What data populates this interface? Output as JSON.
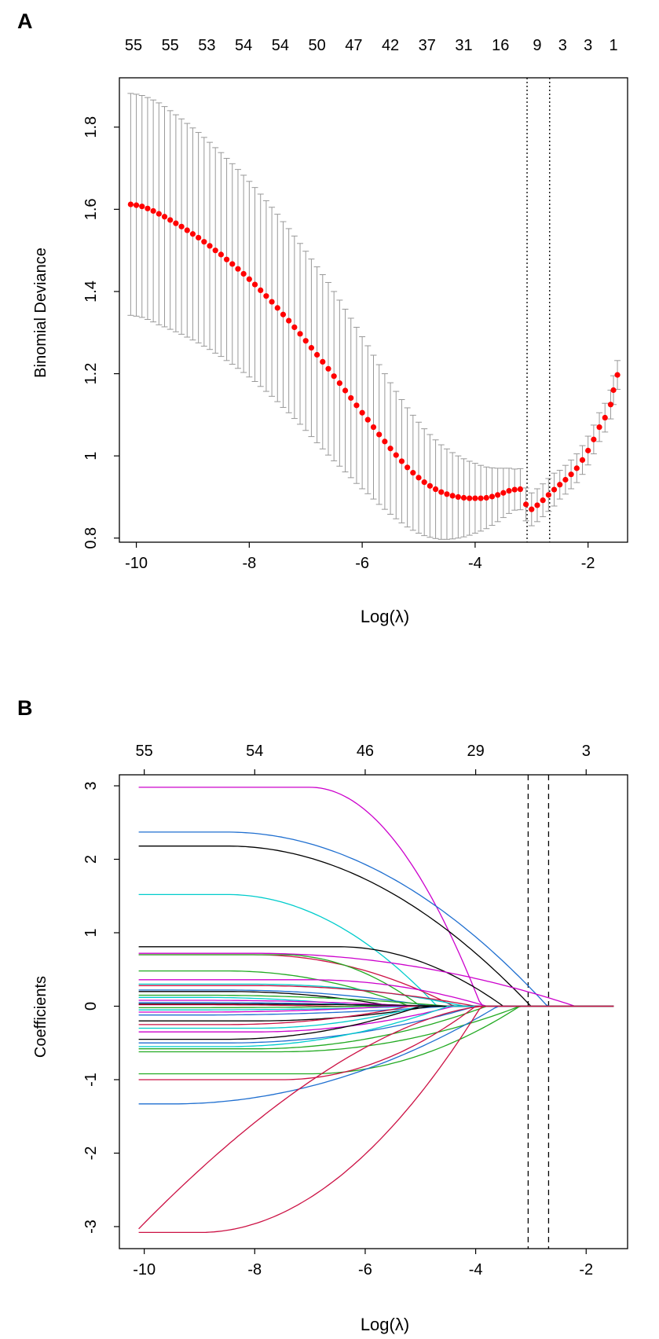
{
  "chart_data": [
    {
      "type": "scatter",
      "panel_label": "A",
      "xlabel": "Log(λ)",
      "ylabel": "Binomial Deviance",
      "xlim": [
        -10.3,
        -1.3
      ],
      "ylim": [
        0.79,
        1.92
      ],
      "xticks": [
        -10,
        -8,
        -6,
        -4,
        -2
      ],
      "yticks": [
        0.8,
        1.0,
        1.2,
        1.4,
        1.6,
        1.8
      ],
      "top_axis_counts": [
        "55",
        "55",
        "53",
        "54",
        "54",
        "50",
        "47",
        "42",
        "37",
        "31",
        "16",
        "9",
        "3",
        "3",
        "1"
      ],
      "top_axis_log_lambda": [
        -10.05,
        -9.4,
        -8.75,
        -8.1,
        -7.45,
        -6.8,
        -6.15,
        -5.5,
        -4.85,
        -4.2,
        -3.55,
        -2.9,
        -2.45,
        -2.0,
        -1.55
      ],
      "vlines": [
        -3.08,
        -2.68
      ],
      "vline_style": "dotted",
      "points": [
        {
          "x": -10.1,
          "y": 1.612,
          "err": 0.27
        },
        {
          "x": -10.0,
          "y": 1.61,
          "err": 0.27
        },
        {
          "x": -9.9,
          "y": 1.607,
          "err": 0.27
        },
        {
          "x": -9.8,
          "y": 1.602,
          "err": 0.27
        },
        {
          "x": -9.7,
          "y": 1.596,
          "err": 0.27
        },
        {
          "x": -9.6,
          "y": 1.589,
          "err": 0.27
        },
        {
          "x": -9.5,
          "y": 1.582,
          "err": 0.268
        },
        {
          "x": -9.4,
          "y": 1.574,
          "err": 0.266
        },
        {
          "x": -9.3,
          "y": 1.566,
          "err": 0.264
        },
        {
          "x": -9.2,
          "y": 1.558,
          "err": 0.262
        },
        {
          "x": -9.1,
          "y": 1.549,
          "err": 0.26
        },
        {
          "x": -9.0,
          "y": 1.54,
          "err": 0.258
        },
        {
          "x": -8.9,
          "y": 1.531,
          "err": 0.256
        },
        {
          "x": -8.8,
          "y": 1.521,
          "err": 0.254
        },
        {
          "x": -8.7,
          "y": 1.511,
          "err": 0.252
        },
        {
          "x": -8.6,
          "y": 1.5,
          "err": 0.25
        },
        {
          "x": -8.5,
          "y": 1.49,
          "err": 0.248
        },
        {
          "x": -8.4,
          "y": 1.478,
          "err": 0.246
        },
        {
          "x": -8.3,
          "y": 1.467,
          "err": 0.244
        },
        {
          "x": -8.2,
          "y": 1.455,
          "err": 0.242
        },
        {
          "x": -8.1,
          "y": 1.443,
          "err": 0.24
        },
        {
          "x": -8.0,
          "y": 1.43,
          "err": 0.238
        },
        {
          "x": -7.9,
          "y": 1.417,
          "err": 0.236
        },
        {
          "x": -7.8,
          "y": 1.403,
          "err": 0.234
        },
        {
          "x": -7.7,
          "y": 1.389,
          "err": 0.232
        },
        {
          "x": -7.6,
          "y": 1.375,
          "err": 0.23
        },
        {
          "x": -7.5,
          "y": 1.36,
          "err": 0.228
        },
        {
          "x": -7.4,
          "y": 1.344,
          "err": 0.226
        },
        {
          "x": -7.3,
          "y": 1.329,
          "err": 0.224
        },
        {
          "x": -7.2,
          "y": 1.313,
          "err": 0.222
        },
        {
          "x": -7.1,
          "y": 1.297,
          "err": 0.22
        },
        {
          "x": -7.0,
          "y": 1.28,
          "err": 0.218
        },
        {
          "x": -6.9,
          "y": 1.263,
          "err": 0.216
        },
        {
          "x": -6.8,
          "y": 1.246,
          "err": 0.214
        },
        {
          "x": -6.7,
          "y": 1.229,
          "err": 0.212
        },
        {
          "x": -6.6,
          "y": 1.212,
          "err": 0.21
        },
        {
          "x": -6.5,
          "y": 1.194,
          "err": 0.206
        },
        {
          "x": -6.4,
          "y": 1.177,
          "err": 0.202
        },
        {
          "x": -6.3,
          "y": 1.159,
          "err": 0.198
        },
        {
          "x": -6.2,
          "y": 1.141,
          "err": 0.194
        },
        {
          "x": -6.1,
          "y": 1.123,
          "err": 0.19
        },
        {
          "x": -6.0,
          "y": 1.105,
          "err": 0.185
        },
        {
          "x": -5.9,
          "y": 1.088,
          "err": 0.18
        },
        {
          "x": -5.8,
          "y": 1.07,
          "err": 0.175
        },
        {
          "x": -5.7,
          "y": 1.052,
          "err": 0.17
        },
        {
          "x": -5.6,
          "y": 1.035,
          "err": 0.165
        },
        {
          "x": -5.5,
          "y": 1.018,
          "err": 0.16
        },
        {
          "x": -5.4,
          "y": 1.002,
          "err": 0.155
        },
        {
          "x": -5.3,
          "y": 0.987,
          "err": 0.15
        },
        {
          "x": -5.2,
          "y": 0.972,
          "err": 0.145
        },
        {
          "x": -5.1,
          "y": 0.959,
          "err": 0.14
        },
        {
          "x": -5.0,
          "y": 0.947,
          "err": 0.135
        },
        {
          "x": -4.9,
          "y": 0.936,
          "err": 0.13
        },
        {
          "x": -4.8,
          "y": 0.927,
          "err": 0.125
        },
        {
          "x": -4.7,
          "y": 0.919,
          "err": 0.12
        },
        {
          "x": -4.6,
          "y": 0.912,
          "err": 0.115
        },
        {
          "x": -4.5,
          "y": 0.907,
          "err": 0.11
        },
        {
          "x": -4.4,
          "y": 0.903,
          "err": 0.105
        },
        {
          "x": -4.3,
          "y": 0.9,
          "err": 0.1
        },
        {
          "x": -4.2,
          "y": 0.898,
          "err": 0.095
        },
        {
          "x": -4.1,
          "y": 0.897,
          "err": 0.09
        },
        {
          "x": -4.0,
          "y": 0.897,
          "err": 0.085
        },
        {
          "x": -3.9,
          "y": 0.897,
          "err": 0.08
        },
        {
          "x": -3.8,
          "y": 0.898,
          "err": 0.075
        },
        {
          "x": -3.7,
          "y": 0.901,
          "err": 0.07
        },
        {
          "x": -3.6,
          "y": 0.905,
          "err": 0.065
        },
        {
          "x": -3.5,
          "y": 0.91,
          "err": 0.06
        },
        {
          "x": -3.4,
          "y": 0.915,
          "err": 0.055
        },
        {
          "x": -3.3,
          "y": 0.918,
          "err": 0.05
        },
        {
          "x": -3.2,
          "y": 0.919,
          "err": 0.05
        },
        {
          "x": -3.1,
          "y": 0.882,
          "err": 0.04
        },
        {
          "x": -3.0,
          "y": 0.87,
          "err": 0.04
        },
        {
          "x": -2.9,
          "y": 0.88,
          "err": 0.04
        },
        {
          "x": -2.8,
          "y": 0.892,
          "err": 0.04
        },
        {
          "x": -2.7,
          "y": 0.905,
          "err": 0.04
        },
        {
          "x": -2.6,
          "y": 0.918,
          "err": 0.04
        },
        {
          "x": -2.5,
          "y": 0.93,
          "err": 0.035
        },
        {
          "x": -2.4,
          "y": 0.942,
          "err": 0.035
        },
        {
          "x": -2.3,
          "y": 0.955,
          "err": 0.035
        },
        {
          "x": -2.2,
          "y": 0.97,
          "err": 0.035
        },
        {
          "x": -2.1,
          "y": 0.99,
          "err": 0.035
        },
        {
          "x": -2.0,
          "y": 1.013,
          "err": 0.035
        },
        {
          "x": -1.9,
          "y": 1.04,
          "err": 0.035
        },
        {
          "x": -1.8,
          "y": 1.07,
          "err": 0.035
        },
        {
          "x": -1.7,
          "y": 1.093,
          "err": 0.035
        },
        {
          "x": -1.6,
          "y": 1.125,
          "err": 0.035
        },
        {
          "x": -1.55,
          "y": 1.16,
          "err": 0.035
        },
        {
          "x": -1.48,
          "y": 1.197,
          "err": 0.035
        }
      ],
      "point_color": "#ff0000",
      "errorbar_color": "#999999"
    },
    {
      "type": "line",
      "panel_label": "B",
      "xlabel": "Log(λ)",
      "ylabel": "Coefficients",
      "xlim": [
        -10.45,
        -1.25
      ],
      "ylim": [
        -3.3,
        3.15
      ],
      "xticks": [
        -10,
        -8,
        -6,
        -4,
        -2
      ],
      "yticks": [
        -3,
        -2,
        -1,
        0,
        1,
        2,
        3
      ],
      "top_axis_counts": [
        "55",
        "54",
        "46",
        "29",
        "3"
      ],
      "top_axis_log_lambda": [
        -10,
        -8,
        -6,
        -4,
        -2
      ],
      "vlines": [
        -3.05,
        -2.68
      ],
      "vline_style": "dashed",
      "series": [
        {
          "name": "magenta-top",
          "color": "#cc00cc",
          "start": 2.98,
          "plateau": -7.0,
          "zero": -3.9,
          "shape": "hinge"
        },
        {
          "name": "blue-top",
          "color": "#1f6fd0",
          "start": 2.37,
          "plateau": -8.5,
          "zero": -2.7,
          "shape": "hinge"
        },
        {
          "name": "black-top",
          "color": "#000000",
          "start": 2.18,
          "plateau": -8.5,
          "zero": -3.0,
          "shape": "hinge"
        },
        {
          "name": "cyan-top",
          "color": "#00cccc",
          "start": 1.52,
          "plateau": -8.5,
          "zero": -4.7,
          "shape": "hinge"
        },
        {
          "name": "black-0.81",
          "color": "#000000",
          "start": 0.81,
          "plateau": -6.5,
          "zero": -3.5,
          "shape": "hinge"
        },
        {
          "name": "magenta-0.72",
          "color": "#cc00cc",
          "start": 0.72,
          "plateau": -8.0,
          "zero": -2.2,
          "shape": "hinge"
        },
        {
          "name": "crimson-0.70",
          "color": "#cc1144",
          "start": 0.7,
          "plateau": -8.0,
          "zero": -4.4,
          "shape": "hinge"
        },
        {
          "name": "green-0.70",
          "color": "#22aa22",
          "start": 0.7,
          "plateau": -7.5,
          "zero": -5.0,
          "shape": "hinge"
        },
        {
          "name": "green-0.48",
          "color": "#22aa22",
          "start": 0.48,
          "plateau": -8.5,
          "zero": -5.2,
          "shape": "hinge"
        },
        {
          "name": "magenta-0.36",
          "color": "#cc00cc",
          "start": 0.36,
          "plateau": -7.0,
          "zero": -3.8,
          "shape": "hinge"
        },
        {
          "name": "cyan-0.30",
          "color": "#00cccc",
          "start": 0.3,
          "plateau": -8.0,
          "zero": -4.2,
          "shape": "hinge"
        },
        {
          "name": "crimson-0.28",
          "color": "#cc1144",
          "start": 0.28,
          "plateau": -8.0,
          "zero": -4.0,
          "shape": "hinge"
        },
        {
          "name": "blue-0.22",
          "color": "#1f6fd0",
          "start": 0.22,
          "plateau": -8.5,
          "zero": -4.8,
          "shape": "hinge"
        },
        {
          "name": "black-0.20",
          "color": "#000000",
          "start": 0.2,
          "plateau": -8.5,
          "zero": -5.5,
          "shape": "hinge"
        },
        {
          "name": "green-0.15",
          "color": "#22aa22",
          "start": 0.15,
          "plateau": -9.0,
          "zero": -4.5,
          "shape": "hinge"
        },
        {
          "name": "cyan-0.12",
          "color": "#00cccc",
          "start": 0.12,
          "plateau": -9.0,
          "zero": -6.0,
          "shape": "hinge"
        },
        {
          "name": "magenta-0.08",
          "color": "#cc00cc",
          "start": 0.08,
          "plateau": -9.0,
          "zero": -5.0,
          "shape": "hinge"
        },
        {
          "name": "blue-0.05",
          "color": "#1f6fd0",
          "start": 0.05,
          "plateau": -9.0,
          "zero": -5.5,
          "shape": "hinge"
        },
        {
          "name": "black-0.03",
          "color": "#000000",
          "start": 0.03,
          "plateau": -9.0,
          "zero": -4.2,
          "shape": "hinge"
        },
        {
          "name": "crimson-0.02",
          "color": "#cc1144",
          "start": 0.02,
          "plateau": -9.0,
          "zero": -6.5,
          "shape": "hinge"
        },
        {
          "name": "green-n0.02",
          "color": "#22aa22",
          "start": -0.02,
          "plateau": -9.0,
          "zero": -6.0,
          "shape": "hinge"
        },
        {
          "name": "cyan-n0.05",
          "color": "#00cccc",
          "start": -0.05,
          "plateau": -9.0,
          "zero": -5.0,
          "shape": "hinge"
        },
        {
          "name": "magenta-n0.08",
          "color": "#cc00cc",
          "start": -0.08,
          "plateau": -9.0,
          "zero": -5.5,
          "shape": "hinge"
        },
        {
          "name": "blue-n0.12",
          "color": "#1f6fd0",
          "start": -0.12,
          "plateau": -9.0,
          "zero": -4.5,
          "shape": "hinge"
        },
        {
          "name": "black-n0.20",
          "color": "#000000",
          "start": -0.2,
          "plateau": -8.0,
          "zero": -4.8,
          "shape": "hinge"
        },
        {
          "name": "crimson-n0.25",
          "color": "#cc1144",
          "start": -0.25,
          "plateau": -8.5,
          "zero": -5.2,
          "shape": "hinge"
        },
        {
          "name": "cyan-n0.30",
          "color": "#00cccc",
          "start": -0.3,
          "plateau": -8.0,
          "zero": -5.0,
          "shape": "hinge"
        },
        {
          "name": "magenta-n0.35",
          "color": "#cc00cc",
          "start": -0.35,
          "plateau": -8.0,
          "zero": -4.4,
          "shape": "hinge"
        },
        {
          "name": "black-n0.45",
          "color": "#000000",
          "start": -0.45,
          "plateau": -8.5,
          "zero": -5.0,
          "shape": "hinge"
        },
        {
          "name": "blue-n0.50",
          "color": "#1f6fd0",
          "start": -0.5,
          "plateau": -8.5,
          "zero": -4.0,
          "shape": "hinge"
        },
        {
          "name": "cyan-n0.55",
          "color": "#00cccc",
          "start": -0.55,
          "plateau": -8.5,
          "zero": -4.5,
          "shape": "hinge"
        },
        {
          "name": "green-n0.58",
          "color": "#22aa22",
          "start": -0.58,
          "plateau": -8.0,
          "zero": -3.8,
          "shape": "hinge"
        },
        {
          "name": "green-n0.62",
          "color": "#22aa22",
          "start": -0.62,
          "plateau": -7.5,
          "zero": -3.2,
          "shape": "hinge"
        },
        {
          "name": "green-n0.92",
          "color": "#22aa22",
          "start": -0.92,
          "plateau": -7.0,
          "zero": -3.2,
          "shape": "hinge"
        },
        {
          "name": "crimson-n1.00",
          "color": "#cc1144",
          "start": -1.0,
          "plateau": -7.5,
          "zero": -4.0,
          "shape": "hinge"
        },
        {
          "name": "blue-n1.33",
          "color": "#1f6fd0",
          "start": -1.33,
          "plateau": -9.5,
          "zero": -3.6,
          "shape": "hinge"
        },
        {
          "name": "crimson-n3.03",
          "color": "#cc1144",
          "start": -3.03,
          "plateau": -10.1,
          "zero": -3.8,
          "shape": "convex"
        },
        {
          "name": "crimson-n3.08",
          "color": "#cc1144",
          "start": -3.08,
          "plateau": -9.0,
          "zero": -3.9,
          "shape": "hinge"
        }
      ]
    }
  ]
}
